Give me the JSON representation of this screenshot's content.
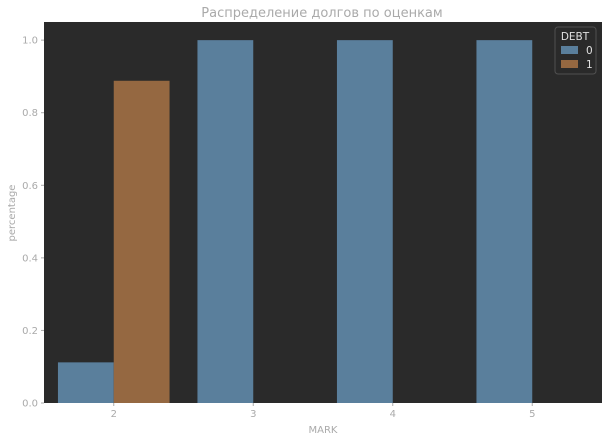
{
  "chart_data": {
    "type": "bar",
    "title": "Распределение долгов по оценкам",
    "xlabel": "MARK",
    "ylabel": "percentage",
    "categories": [
      "2",
      "3",
      "4",
      "5"
    ],
    "yticks": [
      "0.0",
      "0.2",
      "0.4",
      "0.6",
      "0.8",
      "1.0"
    ],
    "ylim": [
      0,
      1.05
    ],
    "grid": false,
    "legend": {
      "title": "DEBT",
      "position": "top-right"
    },
    "series": [
      {
        "name": "0",
        "color": "#5a7f9c",
        "values": [
          0.112,
          1.0,
          1.0,
          1.0
        ]
      },
      {
        "name": "1",
        "color": "#956841",
        "values": [
          0.888,
          0.0,
          0.0,
          0.0
        ]
      }
    ],
    "plot_background": "#2a2a2a"
  }
}
